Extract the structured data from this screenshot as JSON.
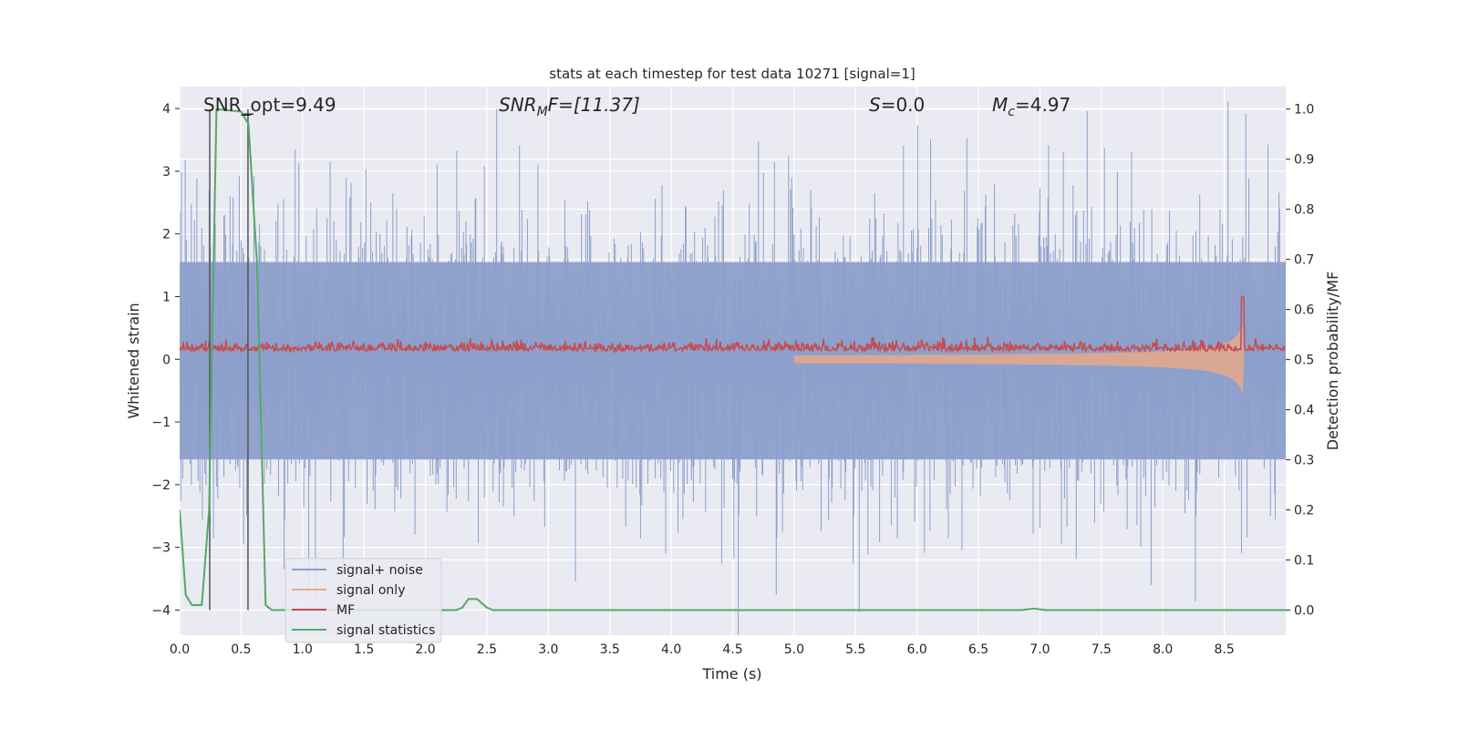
{
  "chart_data": {
    "type": "line",
    "title": "stats at each timestep for test data 10271 [signal=1]",
    "xlabel": "Time (s)",
    "ylabel": "Whitened strain",
    "ylabel_right": "Detection probability/MF",
    "xlim": [
      0,
      9.0
    ],
    "ylim": [
      -4.4,
      4.35
    ],
    "ylim_right": [
      -0.05,
      1.045
    ],
    "xticks": [
      "0.0",
      "0.5",
      "1.0",
      "1.5",
      "2.0",
      "2.5",
      "3.0",
      "3.5",
      "4.0",
      "4.5",
      "5.0",
      "5.5",
      "6.0",
      "6.5",
      "7.0",
      "7.5",
      "8.0",
      "8.5"
    ],
    "yticks": [
      "−4",
      "−3",
      "−2",
      "−1",
      "0",
      "1",
      "2",
      "3",
      "4"
    ],
    "yticks_right": [
      "0.0",
      "0.1",
      "0.2",
      "0.3",
      "0.4",
      "0.5",
      "0.6",
      "0.7",
      "0.8",
      "0.9",
      "1.0"
    ],
    "grid": true,
    "legend_position": "lower-left",
    "annotations": {
      "snr_opt": "SNR_opt=9.49",
      "snr_mf_prefix": "SNR",
      "snr_mf_sub": "M",
      "snr_mf_suffix": "F=[11.37]",
      "s_prefix": "S",
      "s_suffix": "=0.0",
      "mc_prefix": "M",
      "mc_sub": "c",
      "mc_suffix": "=4.97"
    },
    "markers": [
      0.245,
      0.556
    ],
    "series": [
      {
        "name": "signal+ noise",
        "color": "#8da0cb",
        "kind": "noise",
        "std": 0.85,
        "samples": 1800
      },
      {
        "name": "signal only",
        "color": "#e8a88a",
        "kind": "chirp",
        "merger_time": 8.65,
        "peak_amplitude": 0.6
      },
      {
        "name": "MF",
        "color": "#c44e52",
        "kind": "mf",
        "baseline": 0.13,
        "peak_time": 8.65,
        "peak_value": 1.0
      },
      {
        "name": "signal statistics",
        "color": "#55a868",
        "axis": "right",
        "x": [
          0,
          0.05,
          0.1,
          0.18,
          0.24,
          0.3,
          0.5,
          0.56,
          0.63,
          0.7,
          0.75,
          2.25,
          2.3,
          2.35,
          2.42,
          2.5,
          2.55,
          6.85,
          6.95,
          7.05,
          9.0
        ],
        "y": [
          0.2,
          0.03,
          0.01,
          0.01,
          0.2,
          1.0,
          0.995,
          0.97,
          0.69,
          0.01,
          0.0,
          0.0,
          0.005,
          0.022,
          0.022,
          0.005,
          0.0,
          0.0,
          0.003,
          0.0,
          0.0
        ]
      }
    ]
  }
}
